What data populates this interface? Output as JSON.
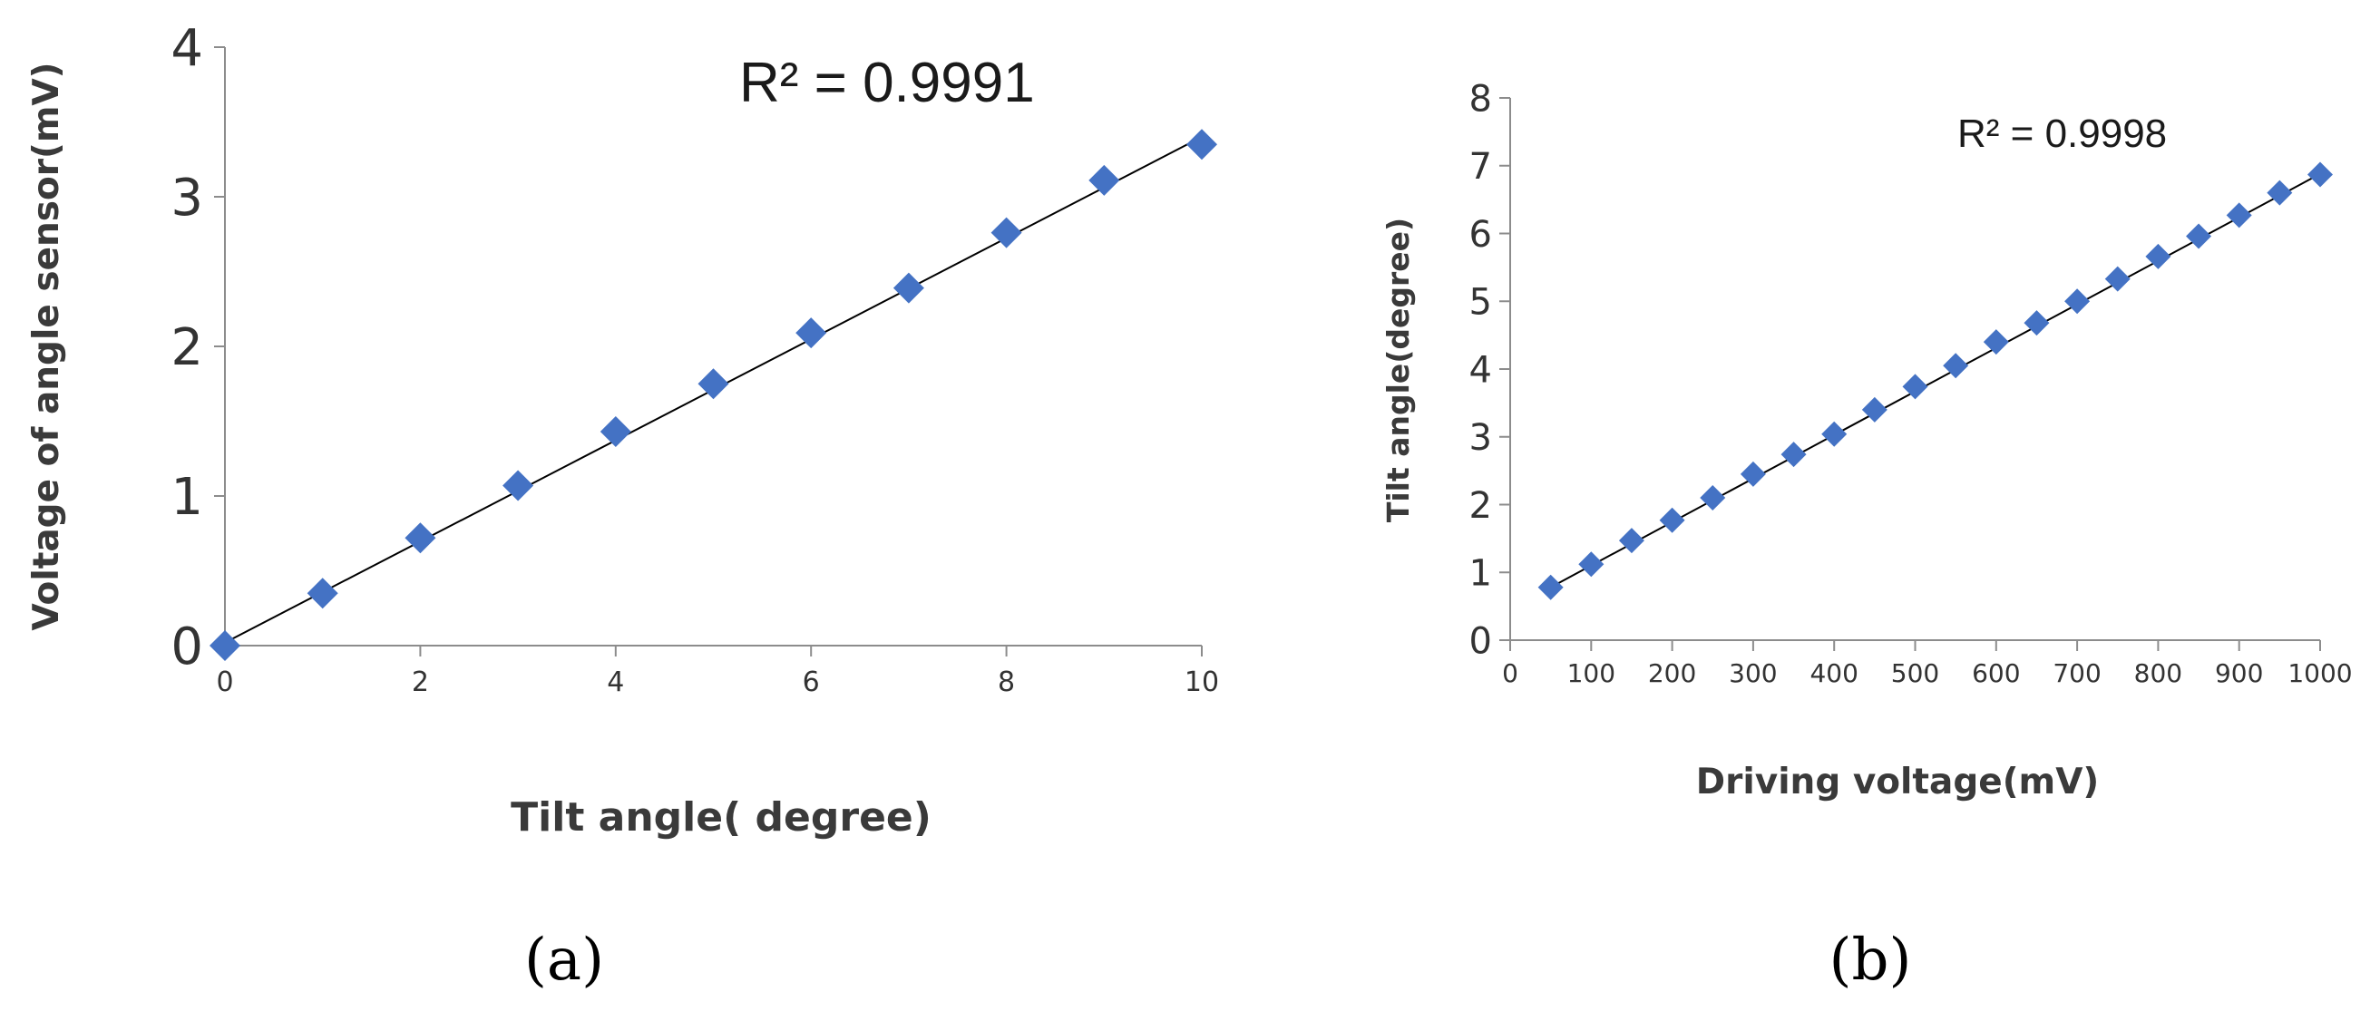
{
  "chart_data": [
    {
      "type": "scatter",
      "panel_label": "(a)",
      "annotation": "R² = 0.9991",
      "xlabel": "Tilt angle( degree)",
      "ylabel": "Voltage of angle sensor(mV)",
      "xlim": [
        0,
        10
      ],
      "ylim": [
        0,
        4
      ],
      "xticks": [
        0,
        2,
        4,
        6,
        8,
        10
      ],
      "yticks": [
        0,
        1,
        2,
        3,
        4
      ],
      "grid": false,
      "marker_color": "#4472C4",
      "trendline": {
        "type": "linear",
        "from": [
          0,
          0.02
        ],
        "to": [
          10,
          3.4
        ],
        "color": "#000000"
      },
      "series": [
        {
          "x": [
            0,
            1,
            2,
            3,
            4,
            5,
            6,
            7,
            8,
            9,
            10
          ],
          "y": [
            0.0,
            0.35,
            0.72,
            1.07,
            1.43,
            1.75,
            2.09,
            2.39,
            2.76,
            3.11,
            3.35
          ]
        }
      ]
    },
    {
      "type": "scatter",
      "panel_label": "(b)",
      "annotation": "R² = 0.9998",
      "xlabel": "Driving  voltage(mV)",
      "ylabel": "Tilt angle(degree)",
      "xlim": [
        0,
        1000
      ],
      "ylim": [
        0,
        8
      ],
      "xticks": [
        0,
        100,
        200,
        300,
        400,
        500,
        600,
        700,
        800,
        900,
        1000
      ],
      "yticks": [
        0,
        1,
        2,
        3,
        4,
        5,
        6,
        7,
        8
      ],
      "grid": false,
      "marker_color": "#4472C4",
      "trendline": {
        "type": "linear",
        "from": [
          50,
          0.78
        ],
        "to": [
          1000,
          6.88
        ],
        "color": "#000000"
      },
      "series": [
        {
          "x": [
            50,
            100,
            150,
            200,
            250,
            300,
            350,
            400,
            450,
            500,
            550,
            600,
            650,
            700,
            750,
            800,
            850,
            900,
            950,
            1000
          ],
          "y": [
            0.78,
            1.12,
            1.47,
            1.77,
            2.1,
            2.45,
            2.74,
            3.04,
            3.4,
            3.74,
            4.05,
            4.4,
            4.68,
            5.0,
            5.33,
            5.66,
            5.96,
            6.27,
            6.6,
            6.87
          ]
        }
      ]
    }
  ]
}
